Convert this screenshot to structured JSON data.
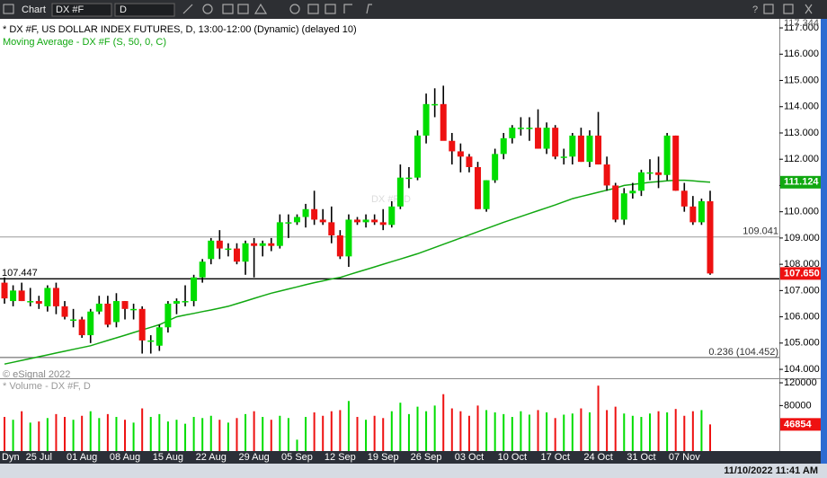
{
  "toolbar": {
    "title": "Chart",
    "symbol": "DX #F",
    "interval": "D"
  },
  "status": {
    "mode": "Dyn",
    "timestamp": "11/10/2022 11:41 AM"
  },
  "chart_data": [
    {
      "type": "candlestick",
      "title": "* DX #F, US DOLLAR INDEX FUTURES, D, 13:00-12:00 (Dynamic) (delayed 10)",
      "watermark": "DX #F, D",
      "credit": "© eSignal 2022",
      "up_color": "#00dd00",
      "down_color": "#ee1111",
      "categories": [
        null,
        null,
        null,
        null,
        "25 Jul",
        null,
        null,
        null,
        null,
        "01 Aug",
        null,
        null,
        null,
        null,
        "08 Aug",
        null,
        null,
        null,
        null,
        "15 Aug",
        null,
        null,
        null,
        null,
        "22 Aug",
        null,
        null,
        null,
        null,
        "29 Aug",
        null,
        null,
        null,
        null,
        "05 Sep",
        null,
        null,
        null,
        null,
        "12 Sep",
        null,
        null,
        null,
        null,
        "19 Sep",
        null,
        null,
        null,
        null,
        "26 Sep",
        null,
        null,
        null,
        null,
        "03 Oct",
        null,
        null,
        null,
        null,
        "10 Oct",
        null,
        null,
        null,
        null,
        "17 Oct",
        null,
        null,
        null,
        null,
        "24 Oct",
        null,
        null,
        null,
        null,
        "31 Oct",
        null,
        null,
        null,
        null,
        "07 Nov",
        null,
        null,
        null
      ],
      "open": [
        107.3,
        106.6,
        107.0,
        106.6,
        106.6,
        106.4,
        107.1,
        106.4,
        105.9,
        105.9,
        105.3,
        106.2,
        106.5,
        105.8,
        106.6,
        106.3,
        106.3,
        105.1,
        104.9,
        105.6,
        106.5,
        106.6,
        106.6,
        107.5,
        108.2,
        108.9,
        108.6,
        108.6,
        108.1,
        108.8,
        108.7,
        108.8,
        108.7,
        109.6,
        109.6,
        109.8,
        110.1,
        109.7,
        109.6,
        109.1,
        108.3,
        109.7,
        109.6,
        109.7,
        109.6,
        109.5,
        110.2,
        111.3,
        111.3,
        112.9,
        114.1,
        114.1,
        112.7,
        112.3,
        112.1,
        111.7,
        110.1,
        111.2,
        112.2,
        112.8,
        113.2,
        113.2,
        113.2,
        112.4,
        113.2,
        112.1,
        112.1,
        112.9,
        111.9,
        112.9,
        111.8,
        111.0,
        109.7,
        110.7,
        110.8,
        111.5,
        111.5,
        111.4,
        112.9,
        110.8,
        110.2,
        109.6,
        110.4
      ],
      "high": [
        107.5,
        107.2,
        107.3,
        107.1,
        106.8,
        107.2,
        107.3,
        106.6,
        106.3,
        106.0,
        106.3,
        106.8,
        106.8,
        106.9,
        106.6,
        106.5,
        106.4,
        105.3,
        105.7,
        106.6,
        106.7,
        107.2,
        107.6,
        108.2,
        109.0,
        109.3,
        108.8,
        108.8,
        108.9,
        109.0,
        108.9,
        109.0,
        109.9,
        109.9,
        109.9,
        110.3,
        110.8,
        110.1,
        110.2,
        109.3,
        109.9,
        109.8,
        109.9,
        109.9,
        110.1,
        110.4,
        111.8,
        111.7,
        113.1,
        114.5,
        114.7,
        114.8,
        113.0,
        112.6,
        112.2,
        111.9,
        111.2,
        112.4,
        113.0,
        113.3,
        113.6,
        113.6,
        113.9,
        113.4,
        113.3,
        112.4,
        113.0,
        113.2,
        113.1,
        113.8,
        112.1,
        111.1,
        110.9,
        111.1,
        111.6,
        112.0,
        112.1,
        113.0,
        112.9,
        111.1,
        110.6,
        110.5,
        110.8
      ],
      "low": [
        106.5,
        106.4,
        106.6,
        106.4,
        106.3,
        106.2,
        106.1,
        105.9,
        105.6,
        105.2,
        105.0,
        106.1,
        105.6,
        105.6,
        105.9,
        105.9,
        104.6,
        104.6,
        104.7,
        105.4,
        106.1,
        106.4,
        106.4,
        107.3,
        108.0,
        108.2,
        108.3,
        108.0,
        107.6,
        107.5,
        108.3,
        108.5,
        108.6,
        109.0,
        109.5,
        109.4,
        109.5,
        109.5,
        108.8,
        108.2,
        107.9,
        109.5,
        109.4,
        109.5,
        109.3,
        109.4,
        110.1,
        110.9,
        111.2,
        112.6,
        113.6,
        112.8,
        111.8,
        111.5,
        111.5,
        110.1,
        110.0,
        111.1,
        112.0,
        112.6,
        112.9,
        112.7,
        112.4,
        112.2,
        112.0,
        111.8,
        111.8,
        111.9,
        111.7,
        111.8,
        110.8,
        109.6,
        109.5,
        110.5,
        110.6,
        111.2,
        110.9,
        111.2,
        110.8,
        110.0,
        109.5,
        109.5,
        107.6
      ],
      "close": [
        106.7,
        107.0,
        106.6,
        106.6,
        106.5,
        107.1,
        106.4,
        106.0,
        105.9,
        105.3,
        106.2,
        106.5,
        105.7,
        106.6,
        106.3,
        106.3,
        105.1,
        105.1,
        105.6,
        106.5,
        106.6,
        106.6,
        107.5,
        108.1,
        108.9,
        108.6,
        108.6,
        108.1,
        108.8,
        108.7,
        108.8,
        108.7,
        109.6,
        109.6,
        109.8,
        110.1,
        109.7,
        109.6,
        109.1,
        108.3,
        109.7,
        109.6,
        109.7,
        109.6,
        109.5,
        110.2,
        111.3,
        111.3,
        112.9,
        114.1,
        114.1,
        112.7,
        112.3,
        112.1,
        111.7,
        110.1,
        111.2,
        112.2,
        112.8,
        113.2,
        113.2,
        113.2,
        112.4,
        113.2,
        112.1,
        112.1,
        112.9,
        111.9,
        112.9,
        111.8,
        111.0,
        109.7,
        110.7,
        110.8,
        111.5,
        111.5,
        111.4,
        112.9,
        110.8,
        110.2,
        109.6,
        110.4,
        107.65
      ],
      "last_label": "107.650",
      "overlays": [
        {
          "name": "Moving Average - DX #F (S, 50, 0, C)",
          "color": "#11a811",
          "values": [
            104.2,
            104.27,
            104.34,
            104.41,
            104.48,
            104.55,
            104.62,
            104.69,
            104.76,
            104.83,
            104.9,
            105.0,
            105.1,
            105.2,
            105.3,
            105.4,
            105.5,
            105.6,
            105.7,
            105.85,
            106.0,
            106.07,
            106.13,
            106.2,
            106.26,
            106.33,
            106.4,
            106.5,
            106.6,
            106.7,
            106.8,
            106.9,
            106.98,
            107.06,
            107.14,
            107.22,
            107.3,
            107.37,
            107.44,
            107.5,
            107.6,
            107.7,
            107.8,
            107.9,
            108.0,
            108.1,
            108.2,
            108.3,
            108.4,
            108.52,
            108.64,
            108.76,
            108.88,
            109.0,
            109.12,
            109.24,
            109.36,
            109.48,
            109.6,
            109.71,
            109.82,
            109.93,
            110.04,
            110.15,
            110.26,
            110.38,
            110.5,
            110.58,
            110.66,
            110.74,
            110.82,
            110.9,
            111.0,
            111.04,
            111.08,
            111.12,
            111.15,
            111.18,
            111.2,
            111.2,
            111.18,
            111.15,
            111.124
          ]
        }
      ],
      "hlines": [
        107.447,
        109.041,
        {
          "value": 104.452,
          "label": "0.236 (104.452)"
        }
      ],
      "hline_colors": [
        "#000000",
        "#999999",
        "#555555"
      ],
      "ylim": [
        103.66,
        117.344
      ],
      "yticks": [
        {
          "value": 104,
          "label": "104.000"
        },
        {
          "value": 105,
          "label": "105.000"
        },
        {
          "value": 106,
          "label": "106.000"
        },
        {
          "value": 107,
          "label": "107.000"
        },
        {
          "value": 108,
          "label": "108.000"
        },
        {
          "value": 109,
          "label": "109.000"
        },
        {
          "value": 110,
          "label": "110.000"
        },
        {
          "value": 111,
          "label": "111.000"
        },
        {
          "value": 112,
          "label": "112.000"
        },
        {
          "value": 113,
          "label": "113.000"
        },
        {
          "value": 114,
          "label": "114.000"
        },
        {
          "value": 115,
          "label": "115.000"
        },
        {
          "value": 116,
          "label": "116.000"
        },
        {
          "value": 117,
          "label": "117.000"
        }
      ]
    },
    {
      "type": "bar",
      "title": "* Volume - DX #F, D",
      "values": [
        60000,
        55000,
        70000,
        50000,
        52000,
        58000,
        65000,
        60000,
        55000,
        62000,
        70000,
        58000,
        65000,
        60000,
        55000,
        50000,
        75000,
        60000,
        65000,
        52000,
        55000,
        48000,
        60000,
        58000,
        62000,
        55000,
        50000,
        58000,
        65000,
        70000,
        60000,
        55000,
        62000,
        58000,
        20000,
        60000,
        68000,
        62000,
        70000,
        72000,
        88000,
        60000,
        55000,
        62000,
        58000,
        70000,
        85000,
        65000,
        78000,
        70000,
        80000,
        100000,
        75000,
        70000,
        62000,
        80000,
        72000,
        68000,
        65000,
        60000,
        70000,
        64000,
        72000,
        68000,
        58000,
        64000,
        66000,
        75000,
        68000,
        115000,
        72000,
        78000,
        66000,
        62000,
        60000,
        66000,
        70000,
        68000,
        74000,
        62000,
        70000,
        72000,
        46854
      ],
      "ylim": [
        0,
        126400
      ],
      "yticks": [
        80000,
        120000
      ]
    }
  ]
}
